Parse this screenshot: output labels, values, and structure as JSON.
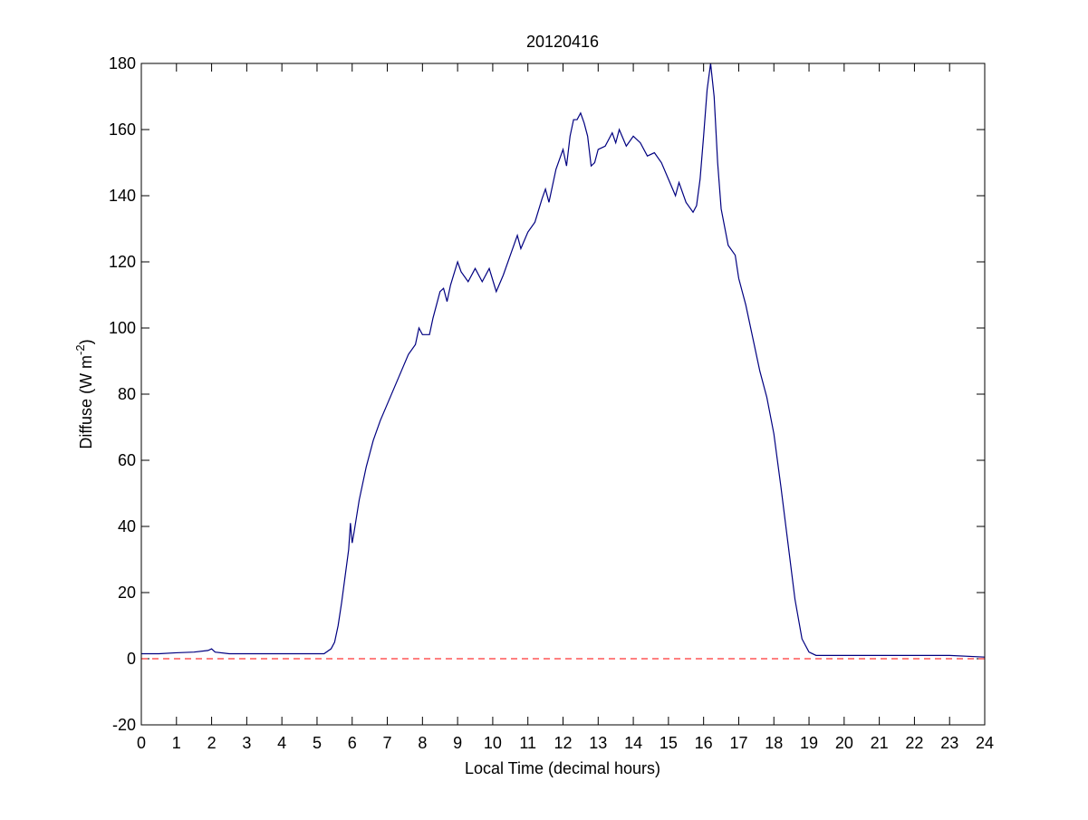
{
  "chart_data": {
    "type": "line",
    "title": "20120416",
    "x_label": "Local Time (decimal hours)",
    "y_label": "Diffuse (W m",
    "y_label_superscript": "-2",
    "y_label_end": ")",
    "xlim": [
      0,
      24
    ],
    "xticks": [
      0,
      1,
      2,
      3,
      4,
      5,
      6,
      7,
      8,
      9,
      10,
      11,
      12,
      13,
      14,
      15,
      16,
      17,
      18,
      19,
      20,
      21,
      22,
      23,
      24
    ],
    "ylim": [
      -20,
      180
    ],
    "yticks": [
      -20,
      0,
      20,
      40,
      60,
      80,
      100,
      120,
      140,
      160,
      180
    ],
    "reference_line": {
      "value": 0,
      "color": "#ff0000",
      "style": "dashed"
    },
    "x": [
      0,
      0.5,
      1,
      1.5,
      1.9,
      2,
      2.1,
      2.5,
      3,
      3.5,
      4,
      4.5,
      5,
      5.2,
      5.4,
      5.5,
      5.6,
      5.7,
      5.8,
      5.9,
      5.95,
      6.0,
      6.05,
      6.2,
      6.4,
      6.6,
      6.8,
      7.0,
      7.2,
      7.4,
      7.6,
      7.8,
      7.9,
      8.0,
      8.2,
      8.3,
      8.5,
      8.6,
      8.7,
      8.8,
      9.0,
      9.1,
      9.3,
      9.5,
      9.7,
      9.9,
      10.1,
      10.3,
      10.5,
      10.7,
      10.8,
      11.0,
      11.2,
      11.4,
      11.5,
      11.6,
      11.8,
      12.0,
      12.1,
      12.2,
      12.3,
      12.4,
      12.5,
      12.6,
      12.7,
      12.8,
      12.9,
      13.0,
      13.2,
      13.4,
      13.5,
      13.6,
      13.8,
      14.0,
      14.2,
      14.4,
      14.6,
      14.8,
      15.0,
      15.2,
      15.3,
      15.5,
      15.7,
      15.8,
      15.9,
      16.0,
      16.1,
      16.2,
      16.3,
      16.4,
      16.5,
      16.7,
      16.9,
      17.0,
      17.1,
      17.2,
      17.4,
      17.6,
      17.8,
      18.0,
      18.2,
      18.4,
      18.6,
      18.8,
      19.0,
      19.2,
      20,
      21,
      22,
      23,
      24
    ],
    "series": [
      {
        "color": "#000080",
        "values": [
          1.5,
          1.5,
          1.8,
          2,
          2.5,
          3,
          2,
          1.5,
          1.5,
          1.5,
          1.5,
          1.5,
          1.5,
          1.5,
          3,
          5,
          10,
          17,
          25,
          33,
          41,
          35,
          38,
          48,
          58,
          66,
          72,
          77,
          82,
          87,
          92,
          95,
          100,
          98,
          98,
          103,
          111,
          112,
          108,
          113,
          120,
          117,
          114,
          118,
          114,
          118,
          111,
          116,
          122,
          128,
          124,
          129,
          132,
          139,
          142,
          138,
          148,
          154,
          149,
          158,
          163,
          163,
          165,
          162,
          158,
          149,
          150,
          154,
          155,
          159,
          156,
          160,
          155,
          158,
          156,
          152,
          153,
          150,
          145,
          140,
          144,
          138,
          135,
          137,
          145,
          158,
          172,
          180,
          170,
          150,
          136,
          125,
          122,
          115,
          111,
          107,
          97,
          87,
          79,
          68,
          52,
          35,
          18,
          6,
          2,
          1,
          1,
          1,
          1,
          1,
          0.5
        ]
      }
    ]
  }
}
